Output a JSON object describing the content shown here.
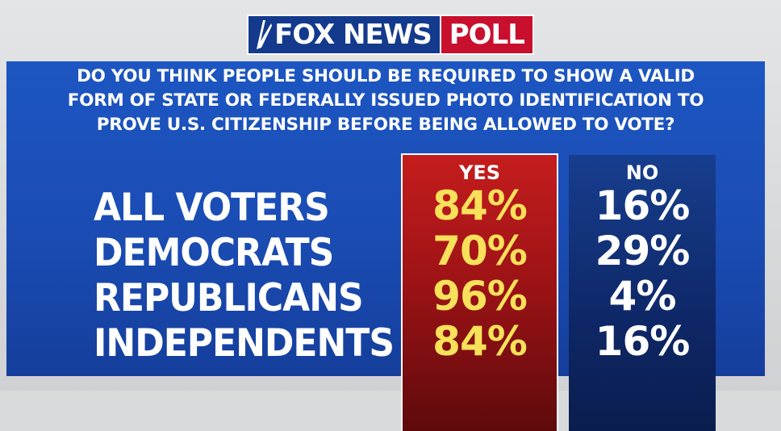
{
  "header": {
    "brand": "FOX NEWS",
    "badge": "POLL"
  },
  "chart_data": {
    "type": "table",
    "title": "DO YOU THINK PEOPLE SHOULD BE REQUIRED TO SHOW A VALID FORM OF STATE OR FEDERALLY ISSUED PHOTO IDENTIFICATION TO PROVE U.S. CITIZENSHIP BEFORE BEING ALLOWED TO VOTE?",
    "title_lines": [
      "DO YOU THINK PEOPLE SHOULD BE REQUIRED TO SHOW A VALID",
      "FORM OF STATE OR FEDERALLY ISSUED PHOTO IDENTIFICATION TO",
      "PROVE U.S. CITIZENSHIP BEFORE BEING ALLOWED TO VOTE?"
    ],
    "categories": [
      "ALL VOTERS",
      "DEMOCRATS",
      "REPUBLICANS",
      "INDEPENDENTS"
    ],
    "series": [
      {
        "name": "YES",
        "values": [
          84,
          70,
          96,
          84
        ],
        "labels": [
          "84%",
          "70%",
          "96%",
          "84%"
        ],
        "color": "#c51d1d",
        "text_color": "#f7e15a"
      },
      {
        "name": "NO",
        "values": [
          16,
          29,
          4,
          16
        ],
        "labels": [
          "16%",
          "29%",
          "4%",
          "16%"
        ],
        "color": "#0e2766",
        "text_color": "#ffffff"
      }
    ],
    "unit": "%"
  },
  "colors": {
    "panel_blue": "#1a4cb3",
    "yes_red": "#c51d1d",
    "no_navy": "#0e2766",
    "yes_text": "#f7e15a",
    "logo_red": "#c8102e"
  }
}
